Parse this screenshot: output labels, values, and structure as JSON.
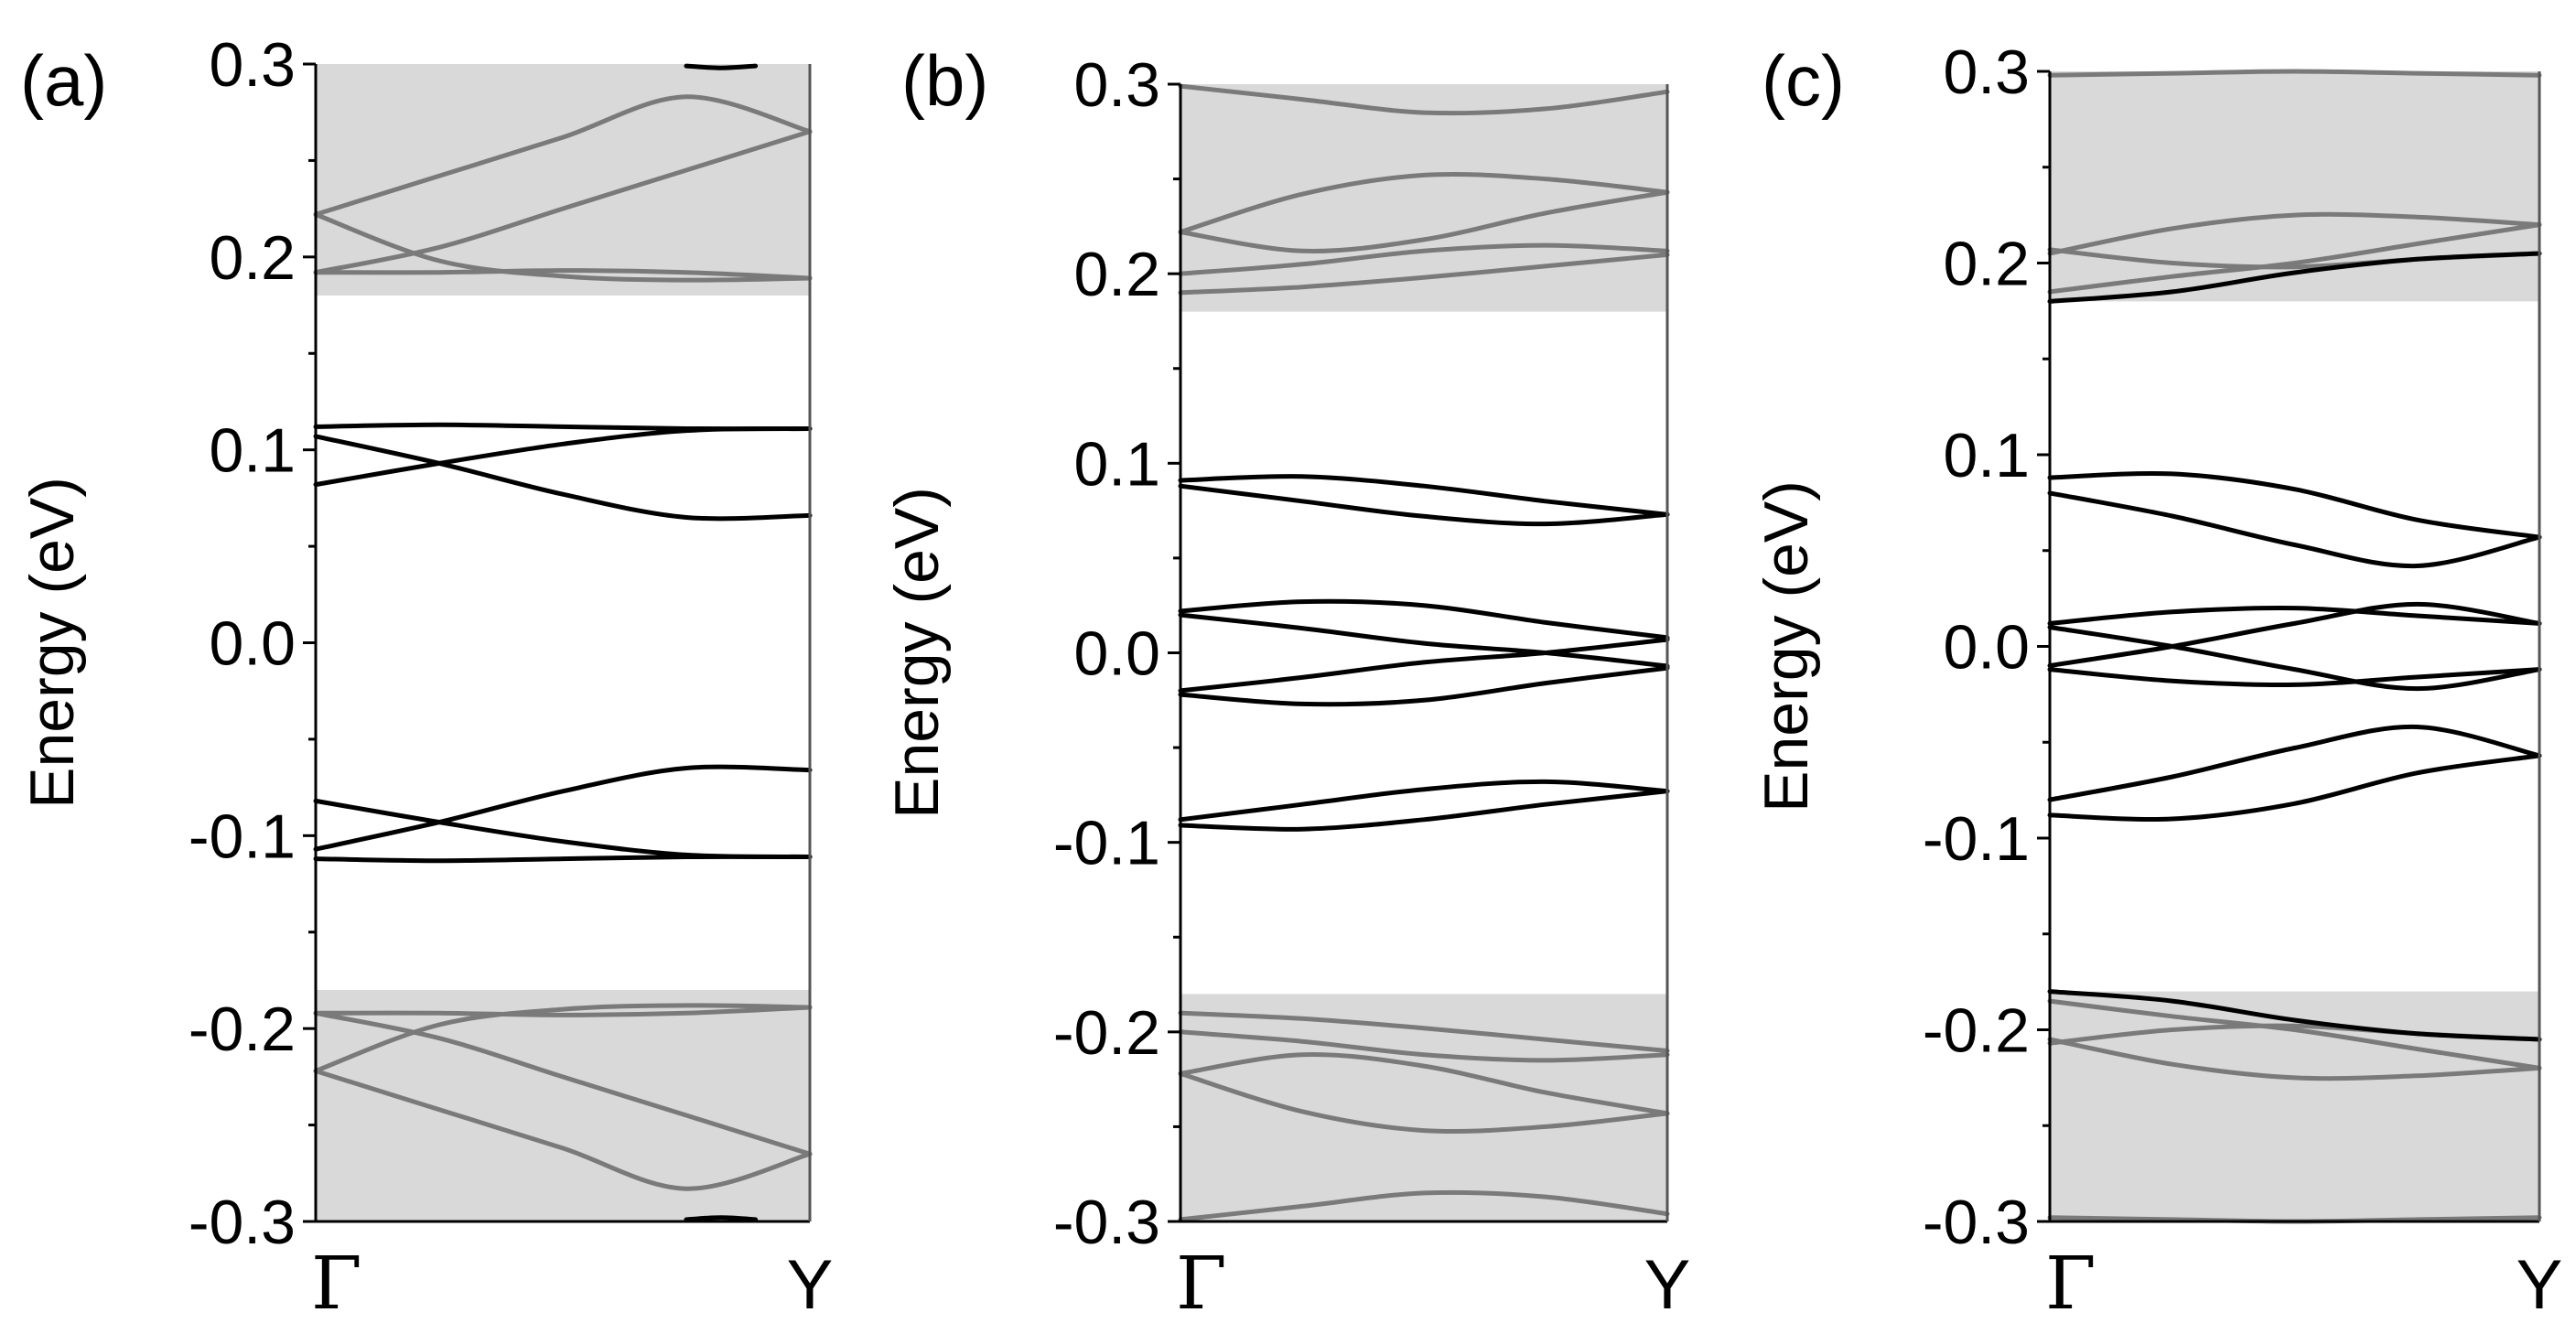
{
  "figure": {
    "description_free": true
  },
  "chart_data": [
    {
      "type": "line",
      "panel": "(a)",
      "ylabel": "Energy (eV)",
      "ylim": [
        -0.3,
        0.3
      ],
      "yticks": [
        "0.3",
        "0.2",
        "0.1",
        "0.0",
        "-0.1",
        "-0.2",
        "-0.3"
      ],
      "x_labels": [
        "Γ",
        "Y"
      ],
      "shaded_bands": [
        [
          0.18,
          0.3
        ],
        [
          -0.3,
          -0.18
        ]
      ],
      "colors": {
        "bulk": "#7a7a7a",
        "edge": "#000000",
        "shade": "#d9d9d9"
      },
      "series": [
        {
          "name": "edge-1",
          "kind": "edge",
          "x": [
            0,
            0.25,
            0.5,
            0.75,
            1
          ],
          "y": [
            0.112,
            0.113,
            0.112,
            0.111,
            0.111
          ]
        },
        {
          "name": "edge-2",
          "kind": "edge",
          "x": [
            0,
            0.25,
            0.5,
            0.75,
            1
          ],
          "y": [
            0.107,
            0.093,
            0.077,
            0.065,
            0.066
          ]
        },
        {
          "name": "edge-3",
          "kind": "edge",
          "x": [
            0,
            0.25,
            0.5,
            0.75,
            1
          ],
          "y": [
            0.082,
            0.093,
            0.103,
            0.11,
            0.111
          ]
        },
        {
          "name": "edge-4",
          "kind": "edge",
          "x": [
            0,
            0.25,
            0.5,
            0.75,
            1
          ],
          "y": [
            -0.112,
            -0.113,
            -0.112,
            -0.111,
            -0.111
          ]
        },
        {
          "name": "edge-5",
          "kind": "edge",
          "x": [
            0,
            0.25,
            0.5,
            0.75,
            1
          ],
          "y": [
            -0.107,
            -0.093,
            -0.077,
            -0.065,
            -0.066
          ]
        },
        {
          "name": "edge-6",
          "kind": "edge",
          "x": [
            0,
            0.25,
            0.5,
            0.75,
            1
          ],
          "y": [
            -0.082,
            -0.093,
            -0.103,
            -0.11,
            -0.111
          ]
        },
        {
          "name": "bulk-1",
          "kind": "bulk",
          "x": [
            0,
            0.25,
            0.5,
            0.75,
            1
          ],
          "y": [
            0.222,
            0.242,
            0.262,
            0.283,
            0.265
          ]
        },
        {
          "name": "bulk-2",
          "kind": "bulk",
          "x": [
            0,
            0.25,
            0.5,
            0.75,
            1
          ],
          "y": [
            0.192,
            0.205,
            0.225,
            0.245,
            0.265
          ]
        },
        {
          "name": "bulk-3",
          "kind": "bulk",
          "x": [
            0,
            0.25,
            0.5,
            0.75,
            1
          ],
          "y": [
            0.222,
            0.198,
            0.19,
            0.188,
            0.189
          ]
        },
        {
          "name": "bulk-4",
          "kind": "bulk",
          "x": [
            0,
            0.25,
            0.5,
            0.75,
            1
          ],
          "y": [
            0.192,
            0.192,
            0.193,
            0.192,
            0.189
          ]
        },
        {
          "name": "bulk-5",
          "kind": "bulk",
          "x": [
            0,
            0.25,
            0.5,
            0.75,
            1
          ],
          "y": [
            -0.222,
            -0.242,
            -0.262,
            -0.283,
            -0.265
          ]
        },
        {
          "name": "bulk-6",
          "kind": "bulk",
          "x": [
            0,
            0.25,
            0.5,
            0.75,
            1
          ],
          "y": [
            -0.192,
            -0.205,
            -0.225,
            -0.245,
            -0.265
          ]
        },
        {
          "name": "bulk-7",
          "kind": "bulk",
          "x": [
            0,
            0.25,
            0.5,
            0.75,
            1
          ],
          "y": [
            -0.222,
            -0.198,
            -0.19,
            -0.188,
            -0.189
          ]
        },
        {
          "name": "bulk-8",
          "kind": "bulk",
          "x": [
            0,
            0.25,
            0.5,
            0.75,
            1
          ],
          "y": [
            -0.192,
            -0.192,
            -0.193,
            -0.192,
            -0.189
          ]
        },
        {
          "name": "bulk-9",
          "kind": "edge",
          "x": [
            0.75,
            0.82,
            0.89
          ],
          "y": [
            0.299,
            0.298,
            0.299
          ]
        },
        {
          "name": "bulk-10",
          "kind": "edge",
          "x": [
            0.75,
            0.82,
            0.89
          ],
          "y": [
            -0.299,
            -0.298,
            -0.299
          ]
        }
      ]
    },
    {
      "type": "line",
      "panel": "(b)",
      "ylabel": "Energy (eV)",
      "ylim": [
        -0.3,
        0.3
      ],
      "yticks": [
        "0.3",
        "0.2",
        "0.1",
        "0.0",
        "-0.1",
        "-0.2",
        "-0.3"
      ],
      "x_labels": [
        "Γ",
        "Y"
      ],
      "shaded_bands": [
        [
          0.18,
          0.3
        ],
        [
          -0.3,
          -0.18
        ]
      ],
      "colors": {
        "bulk": "#7a7a7a",
        "edge": "#000000",
        "shade": "#d9d9d9"
      },
      "series": [
        {
          "name": "edge-1",
          "kind": "edge",
          "x": [
            0,
            0.25,
            0.5,
            0.75,
            1
          ],
          "y": [
            0.091,
            0.093,
            0.088,
            0.08,
            0.073
          ]
        },
        {
          "name": "edge-2",
          "kind": "edge",
          "x": [
            0,
            0.25,
            0.5,
            0.75,
            1
          ],
          "y": [
            0.088,
            0.08,
            0.072,
            0.068,
            0.073
          ]
        },
        {
          "name": "edge-3",
          "kind": "edge",
          "x": [
            0,
            0.25,
            0.5,
            0.75,
            1
          ],
          "y": [
            0.022,
            0.027,
            0.025,
            0.016,
            0.008
          ]
        },
        {
          "name": "edge-4",
          "kind": "edge",
          "x": [
            0,
            0.25,
            0.5,
            0.75,
            1
          ],
          "y": [
            0.02,
            0.013,
            0.005,
            0.0,
            -0.007
          ]
        },
        {
          "name": "edge-5",
          "kind": "edge",
          "x": [
            0,
            0.25,
            0.5,
            0.75,
            1
          ],
          "y": [
            -0.022,
            -0.027,
            -0.025,
            -0.016,
            -0.008
          ]
        },
        {
          "name": "edge-6",
          "kind": "edge",
          "x": [
            0,
            0.25,
            0.5,
            0.75,
            1
          ],
          "y": [
            -0.02,
            -0.013,
            -0.005,
            0.0,
            0.007
          ]
        },
        {
          "name": "edge-7",
          "kind": "edge",
          "x": [
            0,
            0.25,
            0.5,
            0.75,
            1
          ],
          "y": [
            -0.091,
            -0.093,
            -0.088,
            -0.08,
            -0.073
          ]
        },
        {
          "name": "edge-8",
          "kind": "edge",
          "x": [
            0,
            0.25,
            0.5,
            0.75,
            1
          ],
          "y": [
            -0.088,
            -0.08,
            -0.072,
            -0.068,
            -0.073
          ]
        },
        {
          "name": "bulk-1",
          "kind": "bulk",
          "x": [
            0,
            0.25,
            0.5,
            0.75,
            1
          ],
          "y": [
            0.299,
            0.292,
            0.285,
            0.287,
            0.296
          ]
        },
        {
          "name": "bulk-2",
          "kind": "bulk",
          "x": [
            0,
            0.25,
            0.5,
            0.75,
            1
          ],
          "y": [
            0.222,
            0.242,
            0.252,
            0.25,
            0.243
          ]
        },
        {
          "name": "bulk-3",
          "kind": "bulk",
          "x": [
            0,
            0.25,
            0.5,
            0.75,
            1
          ],
          "y": [
            0.222,
            0.212,
            0.218,
            0.232,
            0.243
          ]
        },
        {
          "name": "bulk-4",
          "kind": "bulk",
          "x": [
            0,
            0.25,
            0.5,
            0.75,
            1
          ],
          "y": [
            0.2,
            0.205,
            0.212,
            0.215,
            0.212
          ]
        },
        {
          "name": "bulk-5",
          "kind": "bulk",
          "x": [
            0,
            0.25,
            0.5,
            0.75,
            1
          ],
          "y": [
            0.19,
            0.193,
            0.198,
            0.204,
            0.21
          ]
        },
        {
          "name": "bulk-6",
          "kind": "bulk",
          "x": [
            0,
            0.25,
            0.5,
            0.75,
            1
          ],
          "y": [
            -0.299,
            -0.292,
            -0.285,
            -0.287,
            -0.296
          ]
        },
        {
          "name": "bulk-7",
          "kind": "bulk",
          "x": [
            0,
            0.25,
            0.5,
            0.75,
            1
          ],
          "y": [
            -0.222,
            -0.242,
            -0.252,
            -0.25,
            -0.243
          ]
        },
        {
          "name": "bulk-8",
          "kind": "bulk",
          "x": [
            0,
            0.25,
            0.5,
            0.75,
            1
          ],
          "y": [
            -0.222,
            -0.212,
            -0.218,
            -0.232,
            -0.243
          ]
        },
        {
          "name": "bulk-9",
          "kind": "bulk",
          "x": [
            0,
            0.25,
            0.5,
            0.75,
            1
          ],
          "y": [
            -0.2,
            -0.205,
            -0.212,
            -0.215,
            -0.212
          ]
        },
        {
          "name": "bulk-10",
          "kind": "bulk",
          "x": [
            0,
            0.25,
            0.5,
            0.75,
            1
          ],
          "y": [
            -0.19,
            -0.193,
            -0.198,
            -0.204,
            -0.21
          ]
        }
      ]
    },
    {
      "type": "line",
      "panel": "(c)",
      "ylabel": "Energy (eV)",
      "ylim": [
        -0.3,
        0.3
      ],
      "yticks": [
        "0.3",
        "0.2",
        "0.1",
        "0.0",
        "-0.1",
        "-0.2",
        "-0.3"
      ],
      "x_labels": [
        "Γ",
        "Y"
      ],
      "shaded_bands": [
        [
          0.18,
          0.3
        ],
        [
          -0.3,
          -0.18
        ]
      ],
      "colors": {
        "bulk": "#7a7a7a",
        "edge": "#000000",
        "shade": "#d9d9d9"
      },
      "series": [
        {
          "name": "edge-1",
          "kind": "edge",
          "x": [
            0,
            0.25,
            0.5,
            0.75,
            1
          ],
          "y": [
            0.088,
            0.09,
            0.082,
            0.066,
            0.057
          ]
        },
        {
          "name": "edge-2",
          "kind": "edge",
          "x": [
            0,
            0.25,
            0.5,
            0.75,
            1
          ],
          "y": [
            0.08,
            0.068,
            0.053,
            0.042,
            0.057
          ]
        },
        {
          "name": "edge-3",
          "kind": "edge",
          "x": [
            0,
            0.25,
            0.5,
            0.75,
            1
          ],
          "y": [
            0.012,
            0.018,
            0.02,
            0.016,
            0.012
          ]
        },
        {
          "name": "edge-4",
          "kind": "edge",
          "x": [
            0,
            0.25,
            0.5,
            0.75,
            1
          ],
          "y": [
            0.01,
            0.0,
            -0.012,
            -0.022,
            -0.012
          ]
        },
        {
          "name": "edge-5",
          "kind": "edge",
          "x": [
            0,
            0.25,
            0.5,
            0.75,
            1
          ],
          "y": [
            -0.012,
            -0.018,
            -0.02,
            -0.016,
            -0.012
          ]
        },
        {
          "name": "edge-6",
          "kind": "edge",
          "x": [
            0,
            0.25,
            0.5,
            0.75,
            1
          ],
          "y": [
            -0.01,
            0.0,
            0.012,
            0.022,
            0.012
          ]
        },
        {
          "name": "edge-7",
          "kind": "edge",
          "x": [
            0,
            0.25,
            0.5,
            0.75,
            1
          ],
          "y": [
            -0.088,
            -0.09,
            -0.082,
            -0.066,
            -0.057
          ]
        },
        {
          "name": "edge-8",
          "kind": "edge",
          "x": [
            0,
            0.25,
            0.5,
            0.75,
            1
          ],
          "y": [
            -0.08,
            -0.068,
            -0.053,
            -0.042,
            -0.057
          ]
        },
        {
          "name": "bulk-1",
          "kind": "bulk",
          "x": [
            0,
            0.25,
            0.5,
            0.75,
            1
          ],
          "y": [
            0.298,
            0.299,
            0.3,
            0.299,
            0.298
          ]
        },
        {
          "name": "bulk-2",
          "kind": "bulk",
          "x": [
            0,
            0.25,
            0.5,
            0.75,
            1
          ],
          "y": [
            0.205,
            0.218,
            0.225,
            0.224,
            0.22
          ]
        },
        {
          "name": "bulk-3",
          "kind": "bulk",
          "x": [
            0,
            0.25,
            0.5,
            0.75,
            1
          ],
          "y": [
            0.207,
            0.2,
            0.198,
            0.202,
            0.205
          ]
        },
        {
          "name": "bulk-4",
          "kind": "bulk",
          "x": [
            0,
            0.25,
            0.5,
            0.75,
            1
          ],
          "y": [
            0.185,
            0.193,
            0.2,
            0.21,
            0.22
          ]
        },
        {
          "name": "bulk-5",
          "kind": "edge",
          "x": [
            0,
            0.25,
            0.5,
            0.75,
            1
          ],
          "y": [
            0.18,
            0.185,
            0.195,
            0.202,
            0.205
          ]
        },
        {
          "name": "bulk-6",
          "kind": "bulk",
          "x": [
            0,
            0.25,
            0.5,
            0.75,
            1
          ],
          "y": [
            -0.298,
            -0.299,
            -0.3,
            -0.299,
            -0.298
          ]
        },
        {
          "name": "bulk-7",
          "kind": "bulk",
          "x": [
            0,
            0.25,
            0.5,
            0.75,
            1
          ],
          "y": [
            -0.205,
            -0.218,
            -0.225,
            -0.224,
            -0.22
          ]
        },
        {
          "name": "bulk-8",
          "kind": "bulk",
          "x": [
            0,
            0.25,
            0.5,
            0.75,
            1
          ],
          "y": [
            -0.207,
            -0.2,
            -0.198,
            -0.202,
            -0.205
          ]
        },
        {
          "name": "bulk-9",
          "kind": "bulk",
          "x": [
            0,
            0.25,
            0.5,
            0.75,
            1
          ],
          "y": [
            -0.185,
            -0.193,
            -0.2,
            -0.21,
            -0.22
          ]
        },
        {
          "name": "bulk-10",
          "kind": "edge",
          "x": [
            0,
            0.25,
            0.5,
            0.75,
            1
          ],
          "y": [
            -0.18,
            -0.185,
            -0.195,
            -0.202,
            -0.205
          ]
        }
      ]
    }
  ]
}
